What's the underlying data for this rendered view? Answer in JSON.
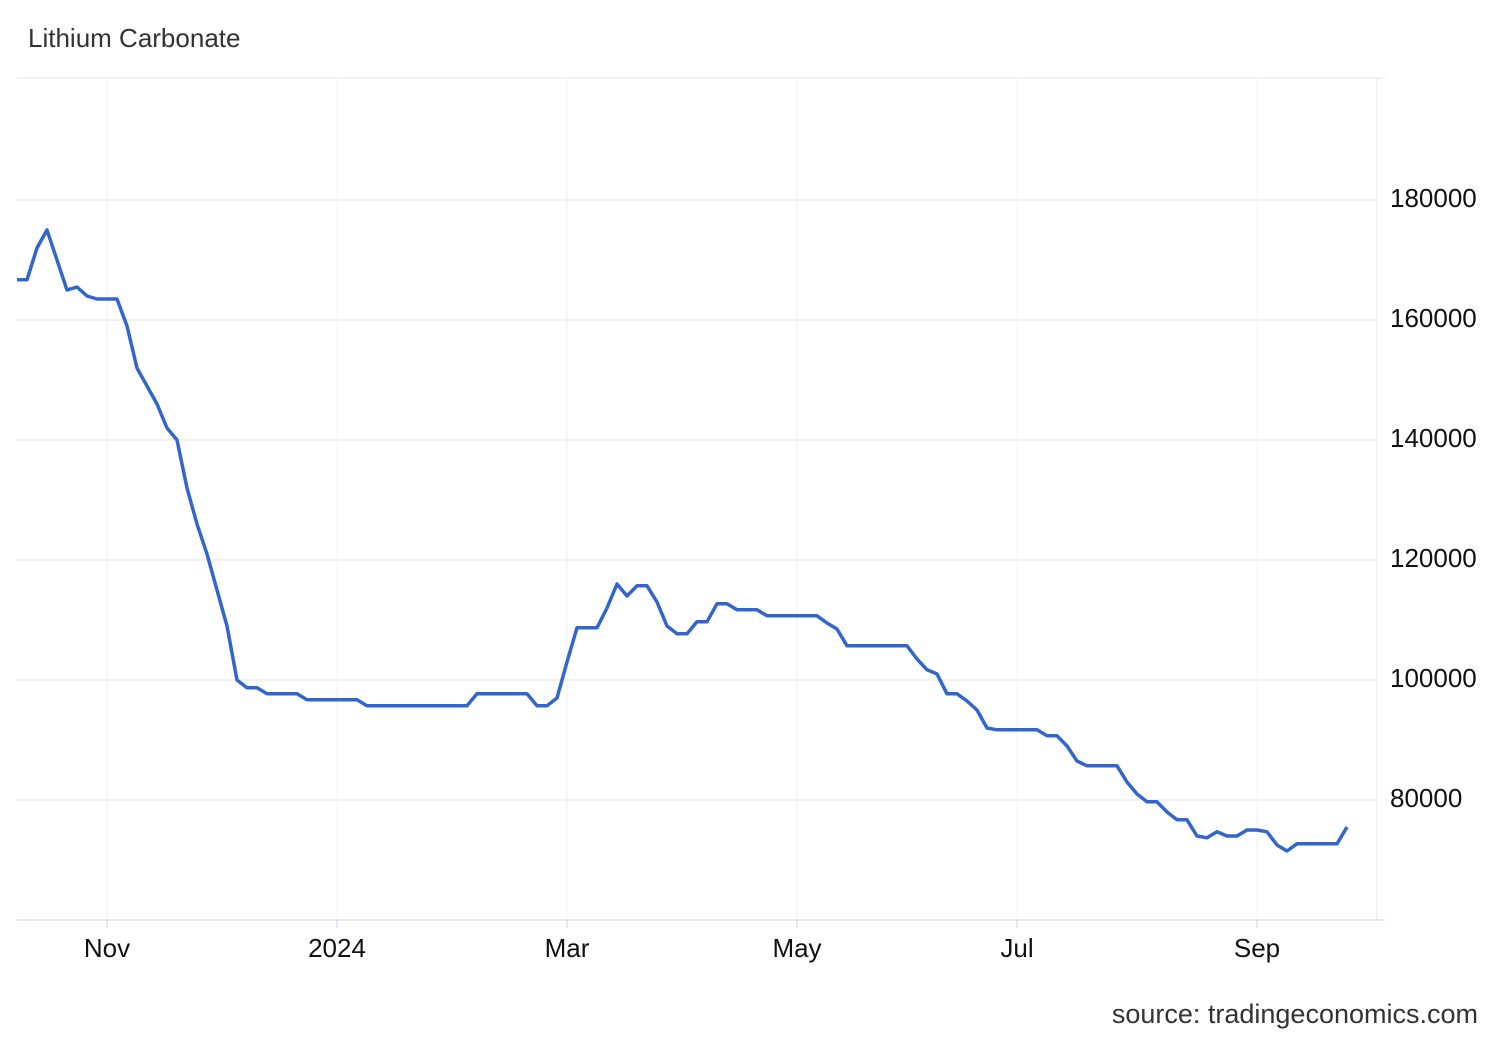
{
  "chart_data": {
    "type": "line",
    "title": "Lithium Carbonate",
    "source": "source: tradingeconomics.com",
    "categories": [
      null,
      null,
      null,
      null,
      null,
      null,
      null,
      null,
      null,
      "Nov",
      null,
      null,
      null,
      null,
      null,
      null,
      null,
      null,
      null,
      null,
      null,
      null,
      null,
      null,
      null,
      null,
      null,
      null,
      null,
      null,
      null,
      null,
      "2024",
      null,
      null,
      null,
      null,
      null,
      null,
      null,
      null,
      null,
      null,
      null,
      null,
      null,
      null,
      null,
      null,
      null,
      null,
      null,
      null,
      null,
      null,
      "Mar",
      null,
      null,
      null,
      null,
      null,
      null,
      null,
      null,
      null,
      null,
      null,
      null,
      null,
      null,
      null,
      null,
      null,
      null,
      null,
      null,
      null,
      null,
      "May",
      null,
      null,
      null,
      null,
      null,
      null,
      null,
      null,
      null,
      null,
      null,
      null,
      null,
      null,
      null,
      null,
      null,
      null,
      null,
      null,
      null,
      "Jul",
      null,
      null,
      null,
      null,
      null,
      null,
      null,
      null,
      null,
      null,
      null,
      null,
      null,
      null,
      null,
      null,
      null,
      null,
      null,
      null,
      null,
      null,
      null,
      "Sep",
      null,
      null,
      null,
      null,
      null,
      null,
      null,
      null,
      null
    ],
    "series": [
      {
        "color": "#3366cc",
        "values": [
          166700,
          166700,
          172000,
          175000,
          170000,
          165000,
          165500,
          164000,
          163500,
          163500,
          163500,
          159000,
          152000,
          149000,
          146000,
          142000,
          140000,
          132000,
          126000,
          121000,
          115000,
          109000,
          100000,
          98700,
          98700,
          97700,
          97700,
          97700,
          97700,
          96700,
          96700,
          96700,
          96700,
          96700,
          96700,
          95700,
          95700,
          95700,
          95700,
          95700,
          95700,
          95700,
          95700,
          95700,
          95700,
          95700,
          97700,
          97700,
          97700,
          97700,
          97700,
          97700,
          95700,
          95700,
          97000,
          103000,
          108700,
          108700,
          108700,
          112000,
          116000,
          114000,
          115700,
          115700,
          113000,
          109000,
          107700,
          107700,
          109700,
          109700,
          112700,
          112700,
          111700,
          111700,
          111700,
          110700,
          110700,
          110700,
          110700,
          110700,
          110700,
          109500,
          108500,
          105700,
          105700,
          105700,
          105700,
          105700,
          105700,
          105700,
          103500,
          101700,
          101000,
          97700,
          97700,
          96500,
          95000,
          92000,
          91700,
          91700,
          91700,
          91700,
          91700,
          90700,
          90700,
          89000,
          86500,
          85700,
          85700,
          85700,
          85700,
          83000,
          81000,
          79700,
          79700,
          78000,
          76700,
          76700,
          74000,
          73700,
          74700,
          74000,
          74000,
          75000,
          75000,
          74700,
          72500,
          71500,
          72700,
          72700,
          72700,
          72700,
          72700,
          75500
        ]
      }
    ],
    "ylim": [
      60000,
      200000
    ],
    "yticks": [
      80000,
      100000,
      120000,
      140000,
      160000,
      180000
    ],
    "grid": true
  }
}
